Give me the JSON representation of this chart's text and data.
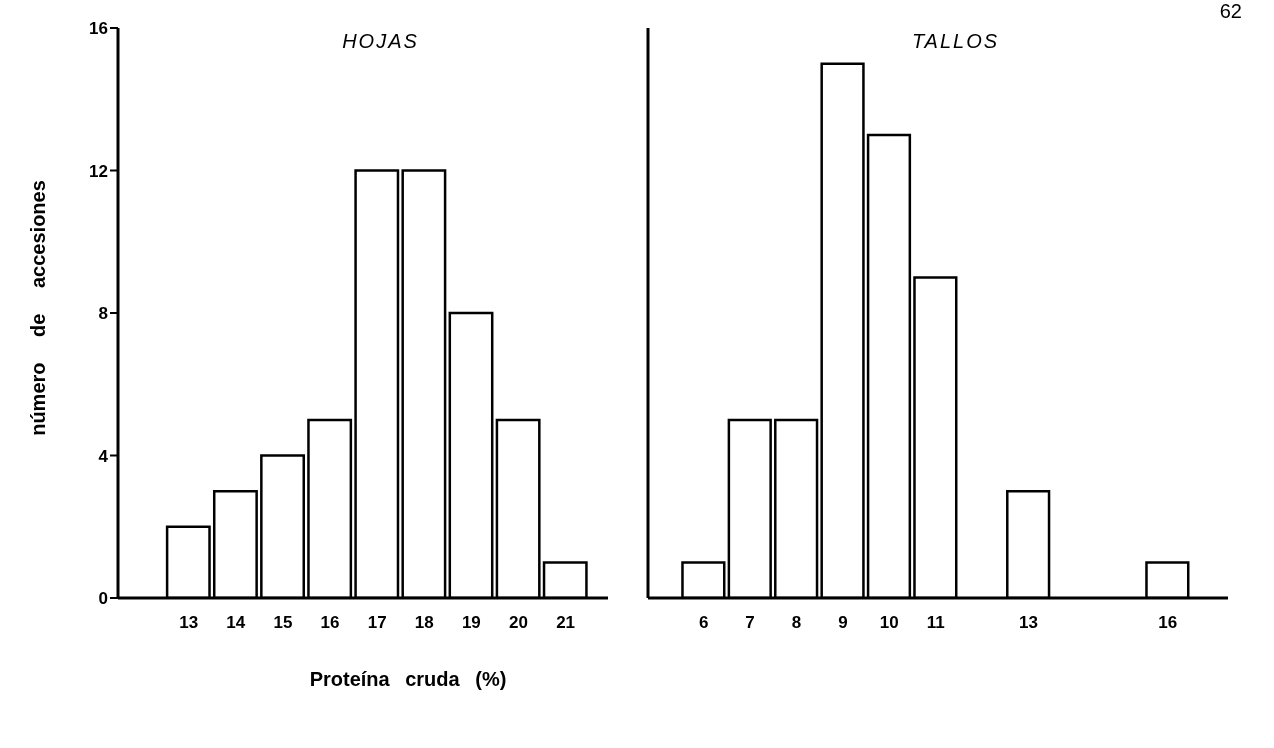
{
  "chart_data": [
    {
      "type": "histogram",
      "title": "HOJAS",
      "xlabel": "Proteína cruda (%)",
      "ylabel": "número de accesiones",
      "bins": [
        12.5,
        13.5,
        14.5,
        15.5,
        16.5,
        17.5,
        18.5,
        19.5,
        20.5,
        21.5
      ],
      "values": [
        2,
        3,
        4,
        5,
        12,
        12,
        8,
        5,
        1
      ],
      "color": "#ffffff",
      "xlim": [
        11.5,
        21.9
      ],
      "xticks": [
        13,
        14,
        15,
        16,
        17,
        18,
        19,
        20,
        21
      ],
      "ylim": [
        0,
        16
      ],
      "yticks": [
        0,
        4,
        8,
        12,
        16
      ]
    },
    {
      "type": "histogram",
      "title": "TALLOS",
      "annotations": [
        "62"
      ],
      "bins": [
        5.5,
        6.5,
        7.5,
        8.5,
        9.5,
        10.5,
        11.5,
        12.5,
        13.5,
        14.5,
        15.5,
        16.5
      ],
      "values": [
        1,
        5,
        5,
        15,
        13,
        9,
        0,
        3,
        0,
        0,
        1
      ],
      "color": "#ffffff",
      "xlim": [
        4.8,
        17.3
      ],
      "xticks": [
        6,
        7,
        8,
        9,
        10,
        11,
        13,
        16
      ],
      "ylim": [
        0,
        16
      ],
      "yticks": [
        0,
        4,
        8,
        12,
        16
      ],
      "tick_labels": "x"
    }
  ]
}
